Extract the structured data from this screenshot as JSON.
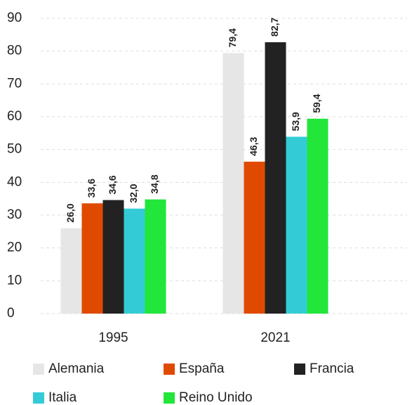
{
  "chart_data": {
    "type": "bar",
    "categories": [
      "1995",
      "2021"
    ],
    "series": [
      {
        "name": "Alemania",
        "color": "#e6e6e6",
        "values": [
          26.0,
          79.4
        ],
        "value_labels": [
          "26,0",
          "79,4"
        ]
      },
      {
        "name": "España",
        "color": "#e04a00",
        "values": [
          33.6,
          46.3
        ],
        "value_labels": [
          "33,6",
          "46,3"
        ]
      },
      {
        "name": "Francia",
        "color": "#222222",
        "values": [
          34.6,
          82.7
        ],
        "value_labels": [
          "34,6",
          "82,7"
        ]
      },
      {
        "name": "Italia",
        "color": "#33ccd6",
        "values": [
          32.0,
          53.9
        ],
        "value_labels": [
          "32,0",
          "53,9"
        ]
      },
      {
        "name": "Reino Unido",
        "color": "#22e63a",
        "values": [
          34.8,
          59.4
        ],
        "value_labels": [
          "34,8",
          "59,4"
        ]
      }
    ],
    "ylim": [
      0,
      90
    ],
    "yticks": [
      0,
      10,
      20,
      30,
      40,
      50,
      60,
      70,
      80,
      90
    ],
    "grid": true,
    "legend": "bottom"
  }
}
